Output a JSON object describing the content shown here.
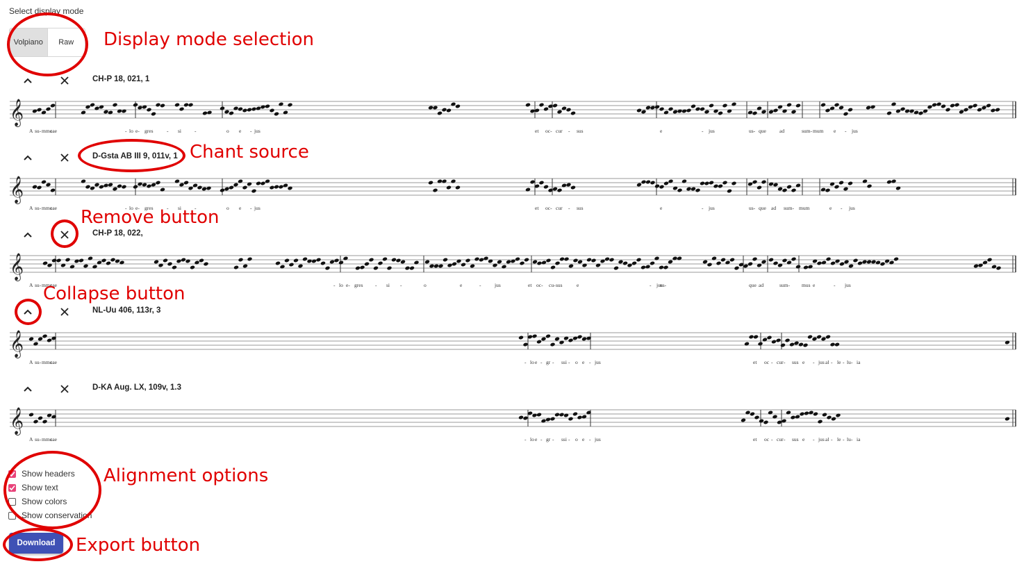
{
  "display_mode": {
    "label": "Select display mode",
    "options": [
      "Volpiano",
      "Raw"
    ],
    "selected": "Volpiano"
  },
  "chants": [
    {
      "source": "CH-P 18, 021, 1",
      "syllables": [
        "A",
        "su-",
        "mmo",
        "cae",
        "-",
        "lo",
        "e-",
        "gres",
        "-",
        "si",
        "-",
        "o",
        "e",
        "-",
        "jus",
        "et",
        "oc-",
        "cur",
        "-",
        "sus",
        "e",
        "-",
        "jus",
        "us-",
        "que",
        "ad",
        "sum-",
        "mum",
        "e",
        "-",
        "jus"
      ]
    },
    {
      "source": "D-Gsta AB III 9, 011v, 1",
      "syllables": [
        "A",
        "su-",
        "mmo",
        "cae",
        "-",
        "lo",
        "e-",
        "gres",
        "-",
        "si",
        "-",
        "o",
        "e",
        "-",
        "jus",
        "et",
        "oc-",
        "cur",
        "-",
        "sus",
        "e",
        "-",
        "jus",
        "us-",
        "que",
        "ad",
        "sum-",
        "mum",
        "e",
        "-",
        "jus"
      ]
    },
    {
      "source": "CH-P 18, 022,",
      "syllables": [
        "A",
        "su-",
        "mmo",
        "cae",
        "-",
        "lo",
        "e-",
        "gres",
        "-",
        "si",
        "-",
        "o",
        "e",
        "-",
        "jus",
        "et",
        "oc-",
        "cu-",
        "sus",
        "e",
        "-",
        "jus",
        "us-",
        "que",
        "ad",
        "sum-",
        "mus",
        "e",
        "-",
        "jus"
      ]
    },
    {
      "source": "NL-Uu 406, 113r, 3",
      "syllables": [
        "A",
        "su-",
        "mmo",
        "cae",
        "-",
        "lo",
        "e",
        "-",
        "gr",
        "-",
        "ssi",
        "-",
        "o",
        "e",
        "-",
        "jus",
        "et",
        "oc",
        "-",
        "cur",
        "-",
        "sus",
        "e",
        "-",
        "jus",
        "al",
        "-",
        "le",
        "-",
        "lu",
        "-",
        "ia"
      ]
    },
    {
      "source": "D-KA Aug. LX, 109v, 1.3",
      "syllables": [
        "A",
        "su-",
        "mmo",
        "cae",
        "-",
        "lo",
        "e",
        "-",
        "gr",
        "-",
        "ssi",
        "-",
        "o",
        "e",
        "-",
        "jus",
        "et",
        "oc",
        "-",
        "cur",
        "-",
        "sus",
        "e",
        "-",
        "jus",
        "al",
        "-",
        "le",
        "-",
        "lu",
        "-",
        "ia"
      ]
    }
  ],
  "options": [
    {
      "label": "Show headers",
      "checked": true
    },
    {
      "label": "Show text",
      "checked": true
    },
    {
      "label": "Show colors",
      "checked": false
    },
    {
      "label": "Show conservation",
      "checked": false
    }
  ],
  "download_label": "Download",
  "annotations": {
    "display_mode": "Display mode selection",
    "chant_source": "Chant source",
    "remove_button": "Remove button",
    "collapse_button": "Collapse button",
    "alignment_options": "Alignment options",
    "export_button": "Export button"
  },
  "colors": {
    "accent": "#e8437a",
    "primary": "#3f51b5",
    "annotation": "#e00000"
  }
}
